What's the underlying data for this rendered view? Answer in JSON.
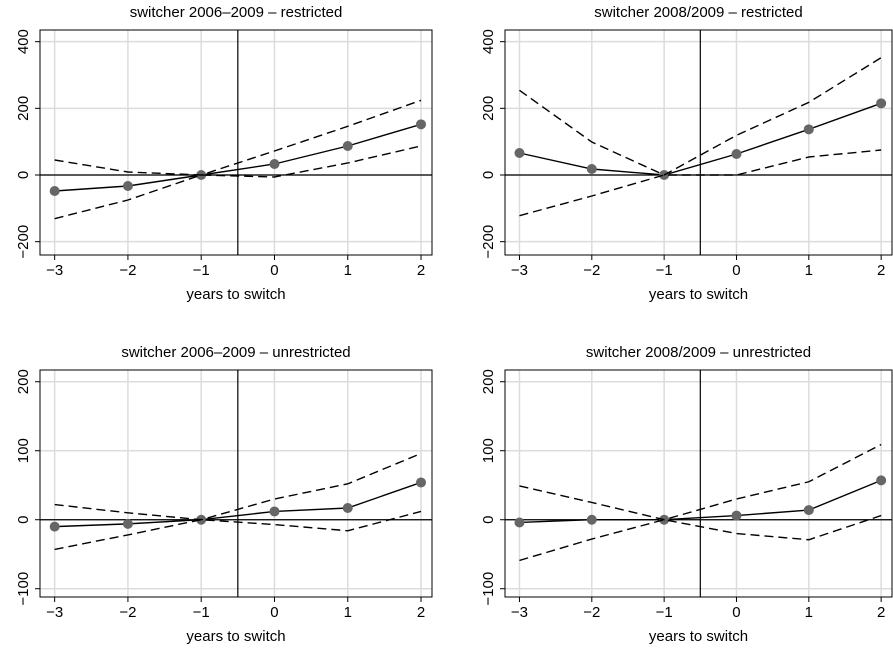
{
  "chart_data": [
    {
      "type": "line",
      "title": "switcher 2006–2009 – restricted",
      "x_label": "years to switch",
      "x": [
        -3,
        -2,
        -1,
        0,
        1,
        2
      ],
      "xlim": [
        -3.2,
        2.15
      ],
      "xticks": [
        {
          "value": -3,
          "label": "−3"
        },
        {
          "value": -2,
          "label": "−2"
        },
        {
          "value": -1,
          "label": "−1"
        },
        0,
        1,
        2
      ],
      "ylim": [
        -240,
        435
      ],
      "yticks": [
        {
          "value": -200,
          "label": "−200"
        },
        0,
        200,
        400
      ],
      "grid": true,
      "vline": -0.5,
      "hline": 0,
      "series": [
        {
          "color": "#000000",
          "dash": false,
          "markers": true,
          "marker_color": "#666666",
          "values": [
            -48,
            -33,
            0,
            33,
            87,
            152
          ]
        },
        {
          "color": "#000000",
          "dash": true,
          "markers": false,
          "values": [
            45,
            9,
            0,
            72,
            146,
            224
          ]
        },
        {
          "color": "#000000",
          "dash": true,
          "markers": false,
          "values": [
            -131,
            -75,
            0,
            -6,
            36,
            87
          ]
        }
      ]
    },
    {
      "type": "line",
      "title": "switcher 2008/2009 – restricted",
      "x_label": "years to switch",
      "x": [
        -3,
        -2,
        -1,
        0,
        1,
        2
      ],
      "xlim": [
        -3.2,
        2.15
      ],
      "xticks": [
        {
          "value": -3,
          "label": "−3"
        },
        {
          "value": -2,
          "label": "−2"
        },
        {
          "value": -1,
          "label": "−1"
        },
        0,
        1,
        2
      ],
      "ylim": [
        -240,
        435
      ],
      "yticks": [
        {
          "value": -200,
          "label": "−200"
        },
        0,
        200,
        400
      ],
      "grid": true,
      "vline": -0.5,
      "hline": 0,
      "series": [
        {
          "color": "#000000",
          "dash": false,
          "markers": true,
          "marker_color": "#666666",
          "values": [
            66,
            18,
            0,
            63,
            137,
            215
          ]
        },
        {
          "color": "#000000",
          "dash": true,
          "markers": false,
          "values": [
            254,
            99,
            0,
            119,
            218,
            352
          ]
        },
        {
          "color": "#000000",
          "dash": true,
          "markers": false,
          "values": [
            -122,
            -63,
            0,
            0,
            54,
            75
          ]
        }
      ]
    },
    {
      "type": "line",
      "title": "switcher 2006–2009 – unrestricted",
      "x_label": "years to switch",
      "x": [
        -3,
        -2,
        -1,
        0,
        1,
        2
      ],
      "xlim": [
        -3.2,
        2.15
      ],
      "xticks": [
        {
          "value": -3,
          "label": "−3"
        },
        {
          "value": -2,
          "label": "−2"
        },
        {
          "value": -1,
          "label": "−1"
        },
        0,
        1,
        2
      ],
      "ylim": [
        -112,
        217
      ],
      "yticks": [
        {
          "value": -100,
          "label": "−100"
        },
        0,
        100,
        200
      ],
      "grid": true,
      "vline": -0.5,
      "hline": 0,
      "series": [
        {
          "color": "#000000",
          "dash": false,
          "markers": true,
          "marker_color": "#666666",
          "values": [
            -10,
            -6,
            0,
            12,
            17,
            54
          ]
        },
        {
          "color": "#000000",
          "dash": true,
          "markers": false,
          "values": [
            22,
            10,
            0,
            30,
            52,
            96
          ]
        },
        {
          "color": "#000000",
          "dash": true,
          "markers": false,
          "values": [
            -43,
            -22,
            0,
            -7,
            -16,
            12
          ]
        }
      ]
    },
    {
      "type": "line",
      "title": "switcher 2008/2009 – unrestricted",
      "x_label": "years to switch",
      "x": [
        -3,
        -2,
        -1,
        0,
        1,
        2
      ],
      "xlim": [
        -3.2,
        2.15
      ],
      "xticks": [
        {
          "value": -3,
          "label": "−3"
        },
        {
          "value": -2,
          "label": "−2"
        },
        {
          "value": -1,
          "label": "−1"
        },
        0,
        1,
        2
      ],
      "ylim": [
        -112,
        217
      ],
      "yticks": [
        {
          "value": -100,
          "label": "−100"
        },
        0,
        100,
        200
      ],
      "grid": true,
      "vline": -0.5,
      "hline": 0,
      "series": [
        {
          "color": "#000000",
          "dash": false,
          "markers": true,
          "marker_color": "#666666",
          "values": [
            -4,
            0,
            0,
            6,
            14,
            57
          ]
        },
        {
          "color": "#000000",
          "dash": true,
          "markers": false,
          "values": [
            49,
            25,
            0,
            30,
            55,
            109
          ]
        },
        {
          "color": "#000000",
          "dash": true,
          "markers": false,
          "values": [
            -59,
            -28,
            0,
            -20,
            -29,
            6
          ]
        }
      ]
    }
  ]
}
